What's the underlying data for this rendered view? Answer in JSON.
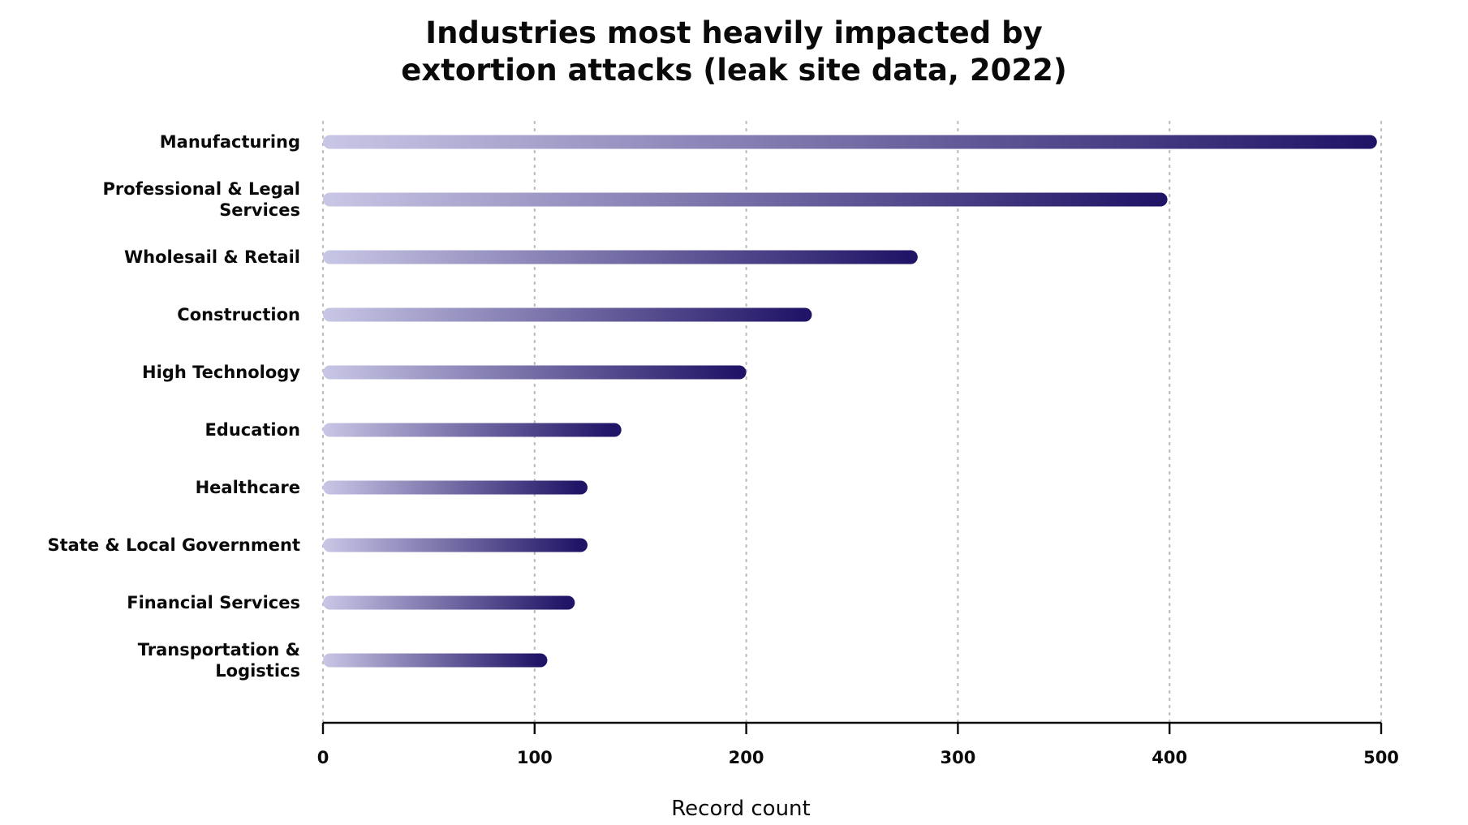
{
  "chart_data": {
    "type": "bar",
    "orientation": "horizontal",
    "title_lines": [
      "Industries most heavily impacted by",
      "extortion attacks (leak site data, 2022)"
    ],
    "xlabel": "Record count",
    "ylabel": "",
    "xlim": [
      0,
      500
    ],
    "xticks": [
      0,
      100,
      200,
      300,
      400,
      500
    ],
    "grid": "vertical-dotted",
    "categories": [
      [
        "Manufacturing"
      ],
      [
        "Professional & Legal",
        "Services"
      ],
      [
        "Wholesail & Retail"
      ],
      [
        "Construction"
      ],
      [
        "High Technology"
      ],
      [
        "Education"
      ],
      [
        "Healthcare"
      ],
      [
        "State & Local Government"
      ],
      [
        "Financial Services"
      ],
      [
        "Transportation &",
        "Logistics"
      ]
    ],
    "values": [
      498,
      399,
      281,
      231,
      200,
      141,
      125,
      125,
      119,
      106
    ],
    "colors": {
      "bar_start": "#c9c7e6",
      "bar_end": "#1f1466",
      "grid": "#bdbdbd",
      "axis": "#0a0a0a"
    }
  }
}
